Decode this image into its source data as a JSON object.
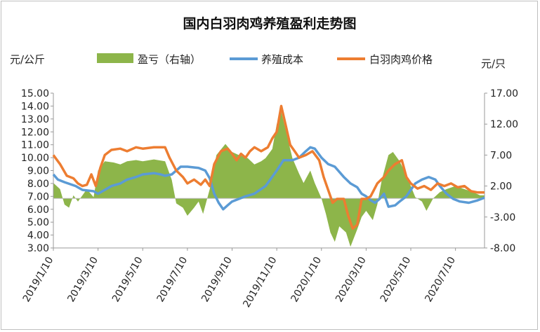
{
  "chart_data": {
    "type": "line",
    "title": "国内白羽肉鸡养殖盈利走势图",
    "left_unit": "元/公斤",
    "right_unit": "元/只",
    "y_left": {
      "min": 3.0,
      "max": 15.0,
      "step": 1.0,
      "ticks": [
        "3.00",
        "4.00",
        "5.00",
        "6.00",
        "7.00",
        "8.00",
        "9.00",
        "10.00",
        "11.00",
        "12.00",
        "13.00",
        "14.00",
        "15.00"
      ]
    },
    "y_right": {
      "min": -8.0,
      "max": 17.0,
      "step": 5.0,
      "ticks": [
        "-8.00",
        "-3.00",
        "2.00",
        "7.00",
        "12.00",
        "17.00"
      ]
    },
    "x_labels": [
      "2019/1/10",
      "2019/3/10",
      "2019/5/10",
      "2019/7/10",
      "2019/9/10",
      "2019/11/10",
      "2020/1/10",
      "2020/3/10",
      "2020/5/10",
      "2020/7/10"
    ],
    "x_label_index": [
      0,
      2,
      4,
      6,
      8,
      10,
      12,
      14,
      16,
      18
    ],
    "x_range": [
      0,
      19.3
    ],
    "legend": [
      {
        "label": "盈亏（右轴）",
        "color": "#8db54a"
      },
      {
        "label": "养殖成本",
        "color": "#5b9bd5"
      },
      {
        "label": "白羽肉鸡价格",
        "color": "#ed7d31"
      }
    ],
    "series": [
      {
        "name": "盈亏（右轴）",
        "axis": "right",
        "style": "area",
        "color": "#8db54a",
        "points": [
          [
            0,
            2.5
          ],
          [
            0.3,
            1.5
          ],
          [
            0.5,
            -1
          ],
          [
            0.7,
            -1.5
          ],
          [
            0.9,
            0.5
          ],
          [
            1.1,
            -0.5
          ],
          [
            1.3,
            0.5
          ],
          [
            1.5,
            1.5
          ],
          [
            1.8,
            0.2
          ],
          [
            2.0,
            4.5
          ],
          [
            2.3,
            6.0
          ],
          [
            2.7,
            5.8
          ],
          [
            3.0,
            5.5
          ],
          [
            3.3,
            6.0
          ],
          [
            3.7,
            6.2
          ],
          [
            4.0,
            6.0
          ],
          [
            4.5,
            6.3
          ],
          [
            5.0,
            6.0
          ],
          [
            5.3,
            3.0
          ],
          [
            5.5,
            -0.8
          ],
          [
            5.8,
            -1.5
          ],
          [
            6.0,
            -2.8
          ],
          [
            6.3,
            -1.5
          ],
          [
            6.5,
            -0.5
          ],
          [
            6.7,
            -2.5
          ],
          [
            7.0,
            1.5
          ],
          [
            7.3,
            7.0
          ],
          [
            7.7,
            8.8
          ],
          [
            8.0,
            7.5
          ],
          [
            8.3,
            7.0
          ],
          [
            8.7,
            6.5
          ],
          [
            9.0,
            5.5
          ],
          [
            9.3,
            6.0
          ],
          [
            9.5,
            6.5
          ],
          [
            9.8,
            8.0
          ],
          [
            10.0,
            12.0
          ],
          [
            10.2,
            14.0
          ],
          [
            10.4,
            11.0
          ],
          [
            10.7,
            6.5
          ],
          [
            11.0,
            4.0
          ],
          [
            11.2,
            2.5
          ],
          [
            11.5,
            4.5
          ],
          [
            11.7,
            2.5
          ],
          [
            12.0,
            0.0
          ],
          [
            12.2,
            -2.5
          ],
          [
            12.4,
            -5.5
          ],
          [
            12.6,
            -7.0
          ],
          [
            12.8,
            -4.5
          ],
          [
            13.1,
            -5.5
          ],
          [
            13.3,
            -7.8
          ],
          [
            13.6,
            -5.0
          ],
          [
            13.8,
            -3.0
          ],
          [
            14.0,
            -2.0
          ],
          [
            14.3,
            -3.5
          ],
          [
            14.5,
            -1.0
          ],
          [
            14.7,
            3.0
          ],
          [
            15.0,
            7.0
          ],
          [
            15.2,
            7.5
          ],
          [
            15.5,
            6.0
          ],
          [
            15.7,
            4.5
          ],
          [
            16.0,
            2.0
          ],
          [
            16.2,
            0.2
          ],
          [
            16.5,
            -0.5
          ],
          [
            16.7,
            -2.0
          ],
          [
            17.0,
            0.0
          ],
          [
            17.3,
            1.0
          ],
          [
            17.6,
            1.5
          ],
          [
            18.0,
            2.0
          ],
          [
            18.4,
            1.5
          ],
          [
            18.8,
            1.0
          ],
          [
            19.1,
            0.5
          ],
          [
            19.3,
            0.5
          ]
        ]
      },
      {
        "name": "养殖成本",
        "axis": "left",
        "style": "line",
        "color": "#5b9bd5",
        "points": [
          [
            0,
            8.7
          ],
          [
            0.2,
            8.3
          ],
          [
            0.5,
            8.1
          ],
          [
            1.0,
            7.8
          ],
          [
            1.3,
            7.5
          ],
          [
            1.8,
            7.4
          ],
          [
            2.0,
            7.2
          ],
          [
            2.3,
            7.5
          ],
          [
            2.6,
            7.8
          ],
          [
            3.0,
            8.0
          ],
          [
            3.3,
            8.3
          ],
          [
            3.7,
            8.5
          ],
          [
            4.0,
            8.7
          ],
          [
            4.5,
            8.8
          ],
          [
            4.8,
            8.7
          ],
          [
            5.0,
            8.6
          ],
          [
            5.3,
            8.7
          ],
          [
            5.5,
            9.0
          ],
          [
            5.7,
            9.3
          ],
          [
            6.0,
            9.3
          ],
          [
            6.5,
            9.2
          ],
          [
            6.8,
            9.0
          ],
          [
            7.0,
            8.4
          ],
          [
            7.2,
            7.2
          ],
          [
            7.4,
            6.5
          ],
          [
            7.6,
            6.0
          ],
          [
            7.8,
            6.3
          ],
          [
            8.0,
            6.6
          ],
          [
            8.3,
            6.8
          ],
          [
            8.6,
            7.0
          ],
          [
            9.0,
            7.2
          ],
          [
            9.5,
            7.8
          ],
          [
            10.0,
            9.0
          ],
          [
            10.3,
            9.8
          ],
          [
            10.7,
            9.8
          ],
          [
            11.0,
            10.0
          ],
          [
            11.3,
            10.5
          ],
          [
            11.5,
            10.8
          ],
          [
            11.7,
            10.7
          ],
          [
            12.0,
            10.0
          ],
          [
            12.3,
            9.5
          ],
          [
            12.6,
            9.3
          ],
          [
            13.0,
            8.5
          ],
          [
            13.3,
            8.0
          ],
          [
            13.6,
            7.7
          ],
          [
            13.8,
            7.2
          ],
          [
            14.0,
            7.0
          ],
          [
            14.2,
            6.7
          ],
          [
            14.4,
            6.5
          ],
          [
            14.6,
            6.8
          ],
          [
            14.8,
            7.2
          ],
          [
            15.0,
            6.2
          ],
          [
            15.3,
            6.3
          ],
          [
            15.5,
            6.6
          ],
          [
            15.8,
            7.0
          ],
          [
            16.2,
            8.0
          ],
          [
            16.5,
            8.3
          ],
          [
            16.8,
            8.5
          ],
          [
            17.1,
            8.3
          ],
          [
            17.3,
            7.8
          ],
          [
            17.6,
            7.2
          ],
          [
            17.9,
            6.8
          ],
          [
            18.2,
            6.6
          ],
          [
            18.6,
            6.5
          ],
          [
            19.0,
            6.7
          ],
          [
            19.3,
            6.9
          ]
        ]
      },
      {
        "name": "白羽肉鸡价格",
        "axis": "left",
        "style": "line",
        "color": "#ed7d31",
        "points": [
          [
            0,
            10.2
          ],
          [
            0.3,
            9.5
          ],
          [
            0.6,
            8.6
          ],
          [
            0.9,
            8.4
          ],
          [
            1.1,
            8.0
          ],
          [
            1.3,
            7.8
          ],
          [
            1.5,
            7.9
          ],
          [
            1.7,
            8.7
          ],
          [
            1.9,
            7.8
          ],
          [
            2.1,
            9.2
          ],
          [
            2.3,
            10.2
          ],
          [
            2.6,
            10.6
          ],
          [
            3.0,
            10.7
          ],
          [
            3.3,
            10.5
          ],
          [
            3.7,
            10.8
          ],
          [
            4.0,
            10.7
          ],
          [
            4.5,
            10.8
          ],
          [
            5.0,
            10.8
          ],
          [
            5.2,
            10.0
          ],
          [
            5.5,
            9.0
          ],
          [
            5.8,
            8.5
          ],
          [
            6.0,
            8.0
          ],
          [
            6.3,
            8.3
          ],
          [
            6.6,
            7.9
          ],
          [
            6.8,
            8.3
          ],
          [
            7.0,
            7.8
          ],
          [
            7.2,
            9.5
          ],
          [
            7.5,
            10.5
          ],
          [
            7.8,
            10.7
          ],
          [
            8.0,
            10.3
          ],
          [
            8.2,
            9.8
          ],
          [
            8.4,
            10.3
          ],
          [
            8.6,
            10.0
          ],
          [
            8.8,
            10.5
          ],
          [
            9.0,
            10.8
          ],
          [
            9.3,
            10.5
          ],
          [
            9.6,
            10.8
          ],
          [
            9.8,
            11.5
          ],
          [
            10.0,
            12.0
          ],
          [
            10.2,
            14.0
          ],
          [
            10.4,
            12.5
          ],
          [
            10.6,
            11.0
          ],
          [
            10.8,
            10.5
          ],
          [
            11.0,
            10.0
          ],
          [
            11.3,
            10.2
          ],
          [
            11.6,
            10.5
          ],
          [
            11.9,
            9.8
          ],
          [
            12.1,
            8.5
          ],
          [
            12.3,
            7.5
          ],
          [
            12.5,
            6.5
          ],
          [
            12.7,
            6.8
          ],
          [
            13.0,
            6.8
          ],
          [
            13.2,
            5.5
          ],
          [
            13.4,
            4.5
          ],
          [
            13.6,
            4.8
          ],
          [
            13.8,
            6.8
          ],
          [
            14.0,
            6.8
          ],
          [
            14.2,
            7.0
          ],
          [
            14.5,
            8.0
          ],
          [
            14.8,
            8.5
          ],
          [
            15.0,
            9.0
          ],
          [
            15.3,
            9.5
          ],
          [
            15.6,
            9.8
          ],
          [
            15.8,
            8.5
          ],
          [
            16.0,
            8.0
          ],
          [
            16.3,
            7.6
          ],
          [
            16.6,
            7.8
          ],
          [
            16.9,
            7.5
          ],
          [
            17.2,
            8.0
          ],
          [
            17.5,
            7.8
          ],
          [
            17.8,
            8.0
          ],
          [
            18.1,
            7.7
          ],
          [
            18.4,
            7.8
          ],
          [
            18.7,
            7.4
          ],
          [
            19.0,
            7.3
          ],
          [
            19.3,
            7.3
          ]
        ]
      }
    ],
    "grid": false,
    "legend_position": "top"
  }
}
